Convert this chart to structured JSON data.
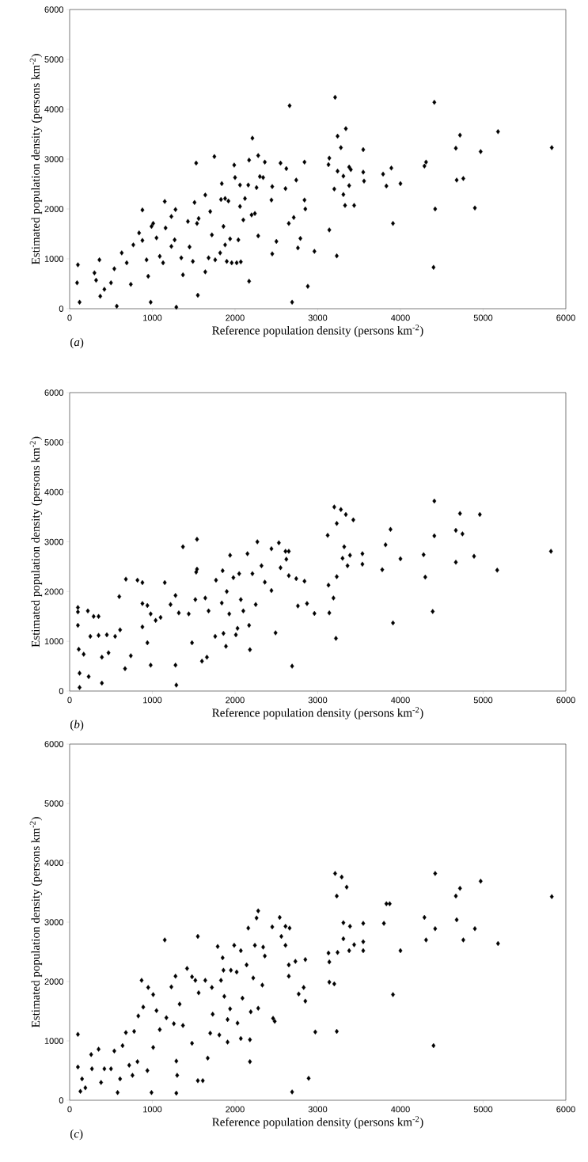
{
  "chart_data": [
    {
      "type": "scatter",
      "xlabel": "Reference population density (persons km$^{-2}$)",
      "ylabel": "Estimated population density (persons km$^{-2}$)",
      "annotations": [
        "(*a*)"
      ],
      "color": "#000000",
      "marker": "diamond",
      "xlim": [
        0,
        6000
      ],
      "ylim": [
        0,
        6000
      ],
      "xticks": [
        0,
        1000,
        2000,
        3000,
        4000,
        5000,
        6000
      ],
      "yticks": [
        0,
        1000,
        2000,
        3000,
        4000,
        5000,
        6000
      ],
      "x": [
        100,
        90,
        120,
        360,
        570,
        880,
        980,
        1290,
        1150,
        1280,
        1510,
        1530,
        1750,
        1550,
        1640,
        2210,
        2280,
        2170,
        1990,
        2160,
        1840,
        1880,
        2060,
        2280,
        2170,
        2450,
        2500,
        2550,
        2620,
        2610,
        2660,
        2690,
        2650,
        2710,
        2790,
        2760,
        2840,
        2740,
        2840,
        2850,
        2880,
        2960,
        3140,
        3130,
        3210,
        3240,
        3280,
        3140,
        3230,
        3200,
        3240,
        3310,
        3340,
        3380,
        3400,
        3310,
        3330,
        3380,
        3440,
        3550,
        3550,
        3560,
        3790,
        3890,
        3830,
        3910,
        4000,
        4290,
        4310,
        4410,
        4420,
        4400,
        4670,
        4720,
        4680,
        4760,
        4900,
        4970,
        5180,
        5830,
        300,
        320,
        370,
        420,
        500,
        540,
        630,
        690,
        740,
        770,
        840,
        880,
        930,
        950,
        990,
        1010,
        1050,
        1090,
        1130,
        1160,
        1230,
        1230,
        1270,
        1350,
        1370,
        1430,
        1450,
        1490,
        1540,
        1560,
        1640,
        1700,
        1720,
        1680,
        1760,
        1820,
        1860,
        1880,
        1900,
        1940,
        1960,
        2020,
        2070,
        2040,
        2100,
        2120,
        2200,
        2240,
        2260,
        2300,
        2340,
        2360,
        2440,
        2450,
        2000,
        2060,
        1920,
        1830
      ],
      "values": [
        880,
        520,
        130,
        980,
        50,
        1980,
        130,
        30,
        2150,
        1990,
        2130,
        2920,
        3050,
        270,
        740,
        3420,
        3070,
        2980,
        2880,
        2480,
        2510,
        2210,
        2050,
        1460,
        550,
        1100,
        1350,
        2920,
        2810,
        2410,
        4070,
        130,
        1710,
        1830,
        1410,
        1220,
        2940,
        2580,
        2180,
        2000,
        450,
        1150,
        3020,
        2890,
        4240,
        3460,
        3230,
        1580,
        1060,
        2400,
        2760,
        2660,
        3610,
        2840,
        2790,
        2290,
        2070,
        2470,
        2070,
        3190,
        2740,
        2560,
        2700,
        2820,
        2460,
        1710,
        2510,
        2860,
        2940,
        4140,
        2000,
        830,
        3220,
        3480,
        2580,
        2610,
        2020,
        3150,
        3550,
        3230,
        720,
        570,
        250,
        390,
        520,
        800,
        1120,
        920,
        490,
        1280,
        1520,
        1370,
        980,
        650,
        1650,
        1710,
        1420,
        1050,
        920,
        1620,
        1850,
        1250,
        1380,
        1020,
        680,
        1750,
        1240,
        950,
        1710,
        1810,
        2280,
        1950,
        1480,
        1020,
        980,
        1120,
        1650,
        1280,
        950,
        1400,
        920,
        920,
        940,
        1380,
        1780,
        2210,
        1880,
        1910,
        2430,
        2650,
        2630,
        2940,
        2180,
        2450,
        2630,
        2480,
        2160,
        2190
      ]
    },
    {
      "type": "scatter",
      "xlabel": "Reference population density (persons km$^{-2}$)",
      "ylabel": "Estimated population density (persons km$^{-2}$)",
      "annotations": [
        "(*b*)"
      ],
      "color": "#000000",
      "marker": "diamond",
      "xlim": [
        0,
        6000
      ],
      "ylim": [
        0,
        6000
      ],
      "xticks": [
        0,
        1000,
        2000,
        3000,
        4000,
        5000,
        6000
      ],
      "yticks": [
        0,
        1000,
        2000,
        3000,
        4000,
        5000,
        6000
      ],
      "x": [
        100,
        100,
        100,
        120,
        120,
        220,
        290,
        350,
        110,
        170,
        230,
        250,
        350,
        390,
        390,
        450,
        470,
        550,
        600,
        610,
        680,
        670,
        740,
        820,
        880,
        880,
        940,
        980,
        880,
        940,
        980,
        1040,
        1100,
        1150,
        1220,
        1280,
        1280,
        1290,
        1320,
        1370,
        1440,
        1480,
        1540,
        1530,
        1540,
        1520,
        1600,
        1660,
        1640,
        1680,
        1760,
        1770,
        1850,
        1840,
        1860,
        1890,
        1900,
        1930,
        1940,
        1980,
        2010,
        2050,
        2070,
        2100,
        2030,
        2150,
        2170,
        2180,
        2210,
        2250,
        2270,
        2320,
        2360,
        2440,
        2440,
        2490,
        2530,
        2550,
        2610,
        2650,
        2620,
        2650,
        2690,
        2740,
        2760,
        2840,
        2870,
        2960,
        3120,
        3130,
        3140,
        3220,
        3190,
        3230,
        3200,
        3280,
        3340,
        3230,
        3320,
        3300,
        3360,
        3390,
        3430,
        3540,
        3540,
        3780,
        3820,
        3880,
        3910,
        4000,
        4280,
        4300,
        4390,
        4410,
        4410,
        4670,
        4720,
        4750,
        4670,
        4890,
        4960,
        5170,
        5820
      ],
      "values": [
        1680,
        1590,
        1320,
        70,
        360,
        1610,
        1500,
        1500,
        840,
        740,
        290,
        1100,
        1120,
        160,
        680,
        1130,
        770,
        1100,
        1900,
        1230,
        2250,
        450,
        710,
        2230,
        2180,
        1760,
        1720,
        1550,
        1290,
        970,
        520,
        1420,
        1480,
        2180,
        1740,
        1920,
        520,
        120,
        1570,
        2900,
        1550,
        970,
        3050,
        2390,
        2450,
        1840,
        600,
        680,
        1870,
        1610,
        1100,
        2230,
        2420,
        1770,
        1160,
        900,
        2000,
        1550,
        2730,
        2280,
        1130,
        2360,
        1840,
        1610,
        1260,
        2760,
        1320,
        830,
        2360,
        1740,
        3000,
        2520,
        2190,
        2020,
        2860,
        1170,
        2980,
        2480,
        2810,
        2810,
        2650,
        2320,
        500,
        2260,
        1710,
        2210,
        1760,
        1560,
        3130,
        2130,
        1570,
        1060,
        1870,
        2300,
        3700,
        3650,
        3550,
        3370,
        2900,
        2670,
        2520,
        2730,
        3440,
        2760,
        2550,
        2440,
        2940,
        3250,
        1370,
        2660,
        2740,
        2290,
        1600,
        3820,
        3120,
        3230,
        3570,
        3160,
        2590,
        2710,
        3550,
        2430,
        2810
      ]
    },
    {
      "type": "scatter",
      "xlabel": "Reference population density (persons km$^{-2}$)",
      "ylabel": "Estimated population density (persons km$^{-2}$)",
      "annotations": [
        "(*c*)"
      ],
      "color": "#000000",
      "marker": "diamond",
      "xlim": [
        0,
        6000
      ],
      "ylim": [
        0,
        6000
      ],
      "xticks": [
        0,
        1000,
        2000,
        3000,
        4000,
        5000,
        6000
      ],
      "yticks": [
        0,
        1000,
        2000,
        3000,
        4000,
        5000,
        6000
      ],
      "x": [
        100,
        100,
        130,
        190,
        150,
        260,
        350,
        270,
        380,
        420,
        500,
        540,
        580,
        610,
        640,
        680,
        720,
        760,
        780,
        820,
        830,
        870,
        890,
        940,
        950,
        990,
        1010,
        1010,
        1050,
        1090,
        1150,
        1170,
        1230,
        1260,
        1280,
        1290,
        1290,
        1300,
        1330,
        1370,
        1420,
        1480,
        1480,
        1520,
        1550,
        1550,
        1610,
        1560,
        1640,
        1670,
        1700,
        1720,
        1730,
        1790,
        1810,
        1830,
        1850,
        1860,
        1870,
        1910,
        1910,
        1940,
        1950,
        1990,
        2030,
        2020,
        2070,
        2070,
        2090,
        2140,
        2160,
        2180,
        2180,
        2190,
        2220,
        2240,
        2260,
        2280,
        2280,
        2330,
        2340,
        2360,
        2450,
        2460,
        2480,
        2540,
        2560,
        2610,
        2610,
        2650,
        2650,
        2660,
        2690,
        2730,
        2770,
        2830,
        2850,
        2850,
        2890,
        2970,
        3130,
        3140,
        3140,
        3200,
        3230,
        3210,
        3230,
        3290,
        3350,
        3310,
        3310,
        3390,
        3240,
        3380,
        3440,
        3550,
        3550,
        3550,
        3800,
        3830,
        3870,
        3910,
        4000,
        4290,
        4310,
        4420,
        4420,
        4400,
        4670,
        4720,
        4680,
        4760,
        4900,
        4970,
        5180,
        5830
      ],
      "values": [
        1110,
        560,
        150,
        210,
        360,
        770,
        860,
        530,
        300,
        530,
        530,
        830,
        130,
        360,
        920,
        1140,
        590,
        420,
        1160,
        650,
        1420,
        2020,
        1570,
        500,
        1900,
        130,
        1780,
        890,
        1510,
        1190,
        2700,
        1390,
        1910,
        1290,
        2090,
        660,
        120,
        420,
        1620,
        1260,
        2220,
        2080,
        960,
        2020,
        2760,
        330,
        330,
        1810,
        2020,
        710,
        1130,
        1900,
        1450,
        2590,
        1100,
        2020,
        2400,
        2190,
        1750,
        1360,
        980,
        1540,
        2190,
        2610,
        1300,
        2160,
        2520,
        1040,
        1720,
        2280,
        2900,
        650,
        1020,
        1490,
        2060,
        2610,
        3070,
        3190,
        1550,
        1940,
        2580,
        2430,
        2920,
        1380,
        1330,
        3080,
        2760,
        2930,
        2610,
        2280,
        2090,
        2900,
        140,
        2340,
        1790,
        1900,
        1670,
        2370,
        370,
        1150,
        2480,
        2330,
        1990,
        1960,
        1160,
        3820,
        3440,
        3760,
        3590,
        2990,
        2720,
        2930,
        2490,
        2520,
        2620,
        2980,
        2670,
        2520,
        2980,
        3310,
        3310,
        1780,
        2520,
        3080,
        2700,
        2890,
        3820,
        920,
        3440,
        3570,
        3040,
        2700,
        2890,
        3690,
        2640,
        3430
      ]
    }
  ]
}
